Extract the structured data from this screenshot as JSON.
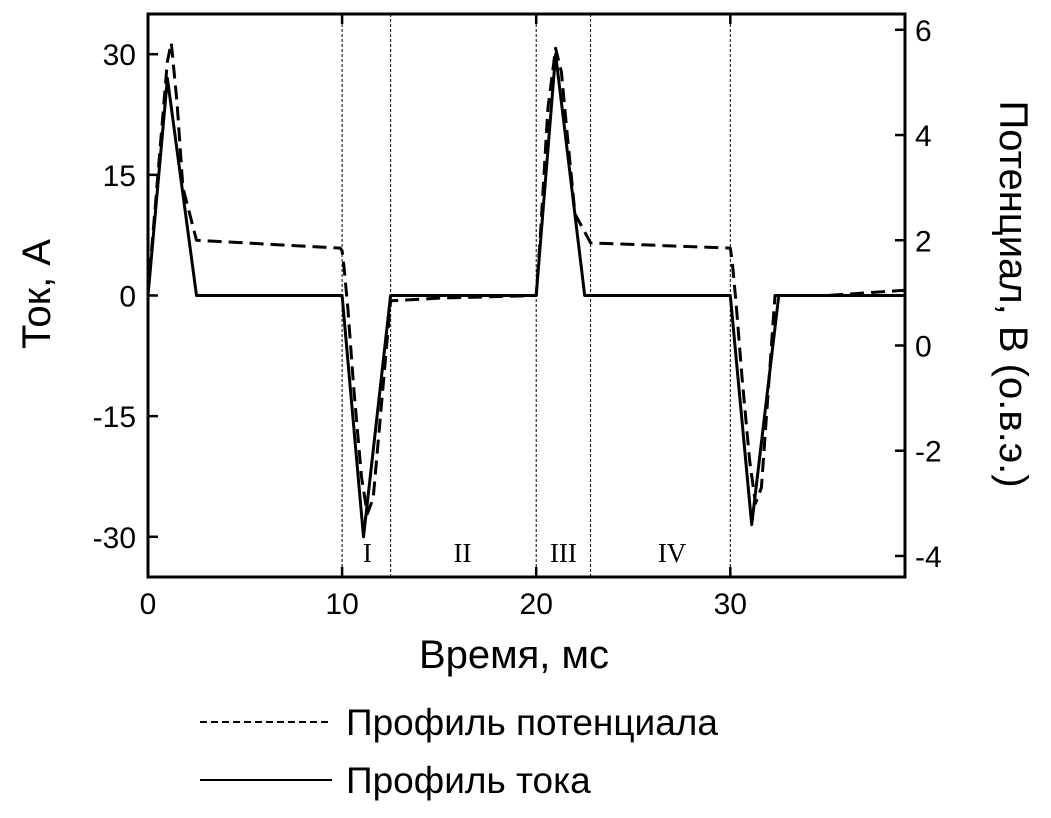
{
  "chart_data": {
    "type": "line",
    "xlabel": "Время, мс",
    "ylabel_left": "Ток, А",
    "ylabel_right": "Потенциал, В (о.в.э.)",
    "xlim": [
      0,
      39
    ],
    "ylim_left": [
      -35,
      35
    ],
    "ylim_right": [
      -4.4,
      6.3
    ],
    "x_ticks": [
      0,
      10,
      20,
      30
    ],
    "y_ticks_left": [
      30,
      15,
      0,
      -15,
      -30
    ],
    "y_ticks_right": [
      6,
      4,
      2,
      0,
      -2,
      -4
    ],
    "grid": false,
    "legend_position": "bottom",
    "vlines": [
      10,
      12.5,
      20,
      22.8,
      30
    ],
    "regions": [
      {
        "label": "I",
        "x": 11.3
      },
      {
        "label": "II",
        "x": 16.2
      },
      {
        "label": "III",
        "x": 21.4
      },
      {
        "label": "IV",
        "x": 27.0
      }
    ],
    "series": [
      {
        "name": "Профиль потенциала",
        "axis": "right",
        "style": "dashed",
        "x": [
          0,
          1.0,
          1.2,
          1.5,
          1.8,
          2.5,
          9.9,
          10.0,
          10.1,
          10.3,
          10.6,
          11.0,
          11.3,
          11.6,
          12.5,
          15.0,
          20.0,
          20.2,
          20.6,
          21.0,
          21.3,
          21.6,
          22.0,
          22.8,
          30.0,
          30.1,
          30.3,
          30.6,
          31.0,
          31.3,
          31.6,
          32.3,
          35.0,
          39.0
        ],
        "values": [
          1.0,
          5.4,
          5.75,
          4.6,
          3.0,
          2.0,
          1.85,
          1.8,
          1.5,
          0.7,
          -0.8,
          -2.5,
          -3.2,
          -2.9,
          0.85,
          0.9,
          0.95,
          2.0,
          4.5,
          5.65,
          5.2,
          4.0,
          2.5,
          1.95,
          1.85,
          1.6,
          0.8,
          -0.6,
          -2.2,
          -3.0,
          -2.7,
          0.95,
          0.95,
          1.05
        ]
      },
      {
        "name": "Профиль тока",
        "axis": "left",
        "style": "solid",
        "x": [
          0,
          1.0,
          2.5,
          10.0,
          11.1,
          12.5,
          20.0,
          21.0,
          22.5,
          30.0,
          31.1,
          32.5,
          39.0
        ],
        "values": [
          0,
          27,
          0,
          0,
          -30,
          0,
          0,
          30,
          0,
          0,
          -28.5,
          0,
          0
        ]
      }
    ]
  }
}
